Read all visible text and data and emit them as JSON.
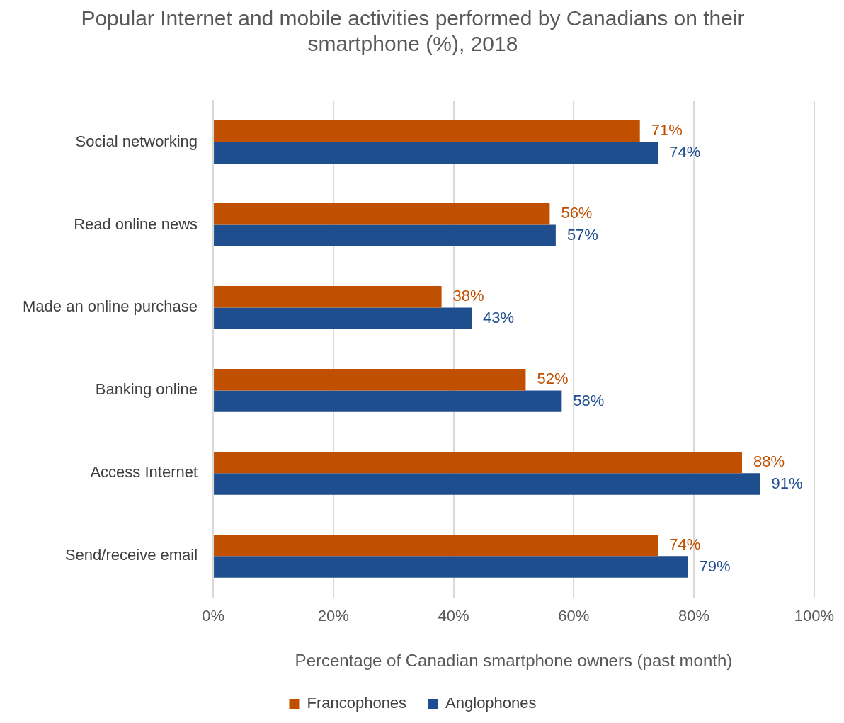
{
  "chart_data": {
    "type": "bar",
    "orientation": "horizontal",
    "title": "Popular Internet and mobile activities performed by Canadians on their smartphone (%), 2018",
    "xlabel": "Percentage of Canadian smartphone owners (past month)",
    "categories": [
      "Social networking",
      "Read online news",
      "Made an online purchase",
      "Banking online",
      "Access Internet",
      "Send/receive email"
    ],
    "series": [
      {
        "name": "Francophones",
        "color": "#c04f00",
        "values": [
          71,
          56,
          38,
          52,
          88,
          74
        ],
        "value_labels": [
          "71%",
          "56%",
          "38%",
          "52%",
          "88%",
          "74%"
        ]
      },
      {
        "name": "Anglophones",
        "color": "#1f4e8f",
        "values": [
          74,
          57,
          43,
          58,
          91,
          79
        ],
        "value_labels": [
          "74%",
          "57%",
          "43%",
          "58%",
          "91%",
          "79%"
        ]
      }
    ],
    "xlim": [
      0,
      100
    ],
    "xticks": [
      {
        "value": 0,
        "label": "0%"
      },
      {
        "value": 20,
        "label": "20%"
      },
      {
        "value": 40,
        "label": "40%"
      },
      {
        "value": 60,
        "label": "60%"
      },
      {
        "value": 80,
        "label": "80%"
      },
      {
        "value": 100,
        "label": "100%"
      }
    ],
    "grid": "x",
    "legend": "bottom"
  }
}
